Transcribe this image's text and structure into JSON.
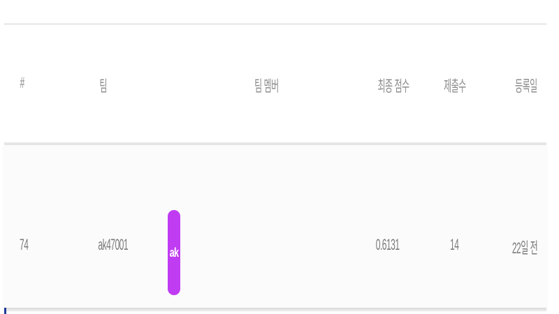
{
  "table": {
    "headers": {
      "rank": "#",
      "team": "팀",
      "members": "팀 멤버",
      "final_score": "최종 점수",
      "submissions": "제출수",
      "registered": "등록일"
    },
    "rows": [
      {
        "rank": "74",
        "team": "ak47001",
        "avatar_initials": "ak",
        "final_score": "0.6131",
        "submissions": "14",
        "registered": "22일 전"
      }
    ]
  },
  "colors": {
    "avatar_bg": "#c03cf2",
    "text": "#8d8d8d",
    "divider": "#e6e6e6",
    "accent_mark": "#1f3d99"
  }
}
